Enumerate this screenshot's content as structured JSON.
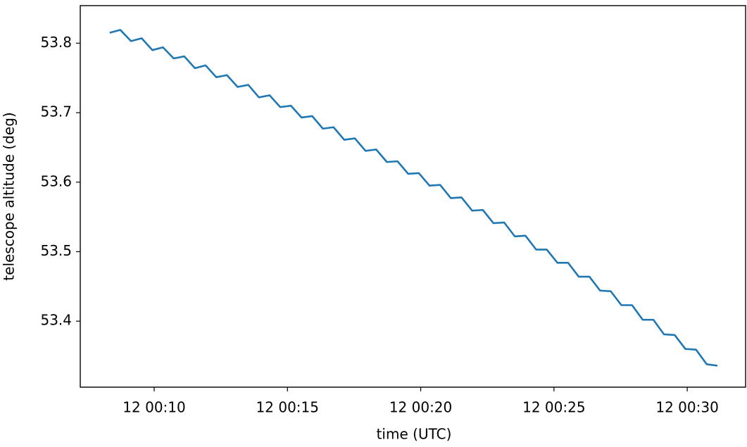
{
  "chart_data": {
    "type": "line",
    "xlabel": "time (UTC)",
    "ylabel": "telescope altitude (deg)",
    "color": "#1f77b4",
    "x": [
      8.33,
      8.73,
      9.13,
      9.53,
      9.93,
      10.33,
      10.73,
      11.13,
      11.53,
      11.93,
      12.33,
      12.73,
      13.13,
      13.53,
      13.93,
      14.33,
      14.73,
      15.13,
      15.53,
      15.93,
      16.33,
      16.73,
      17.13,
      17.53,
      17.93,
      18.33,
      18.73,
      19.13,
      19.53,
      19.93,
      20.33,
      20.73,
      21.13,
      21.53,
      21.93,
      22.33,
      22.73,
      23.13,
      23.53,
      23.93,
      24.33,
      24.73,
      25.13,
      25.53,
      25.93,
      26.33,
      26.73,
      27.13,
      27.53,
      27.93,
      28.33,
      28.73,
      29.13,
      29.53,
      29.93,
      30.33,
      30.73,
      31.13
    ],
    "values": [
      53.815,
      53.819,
      53.803,
      53.807,
      53.79,
      53.794,
      53.778,
      53.781,
      53.764,
      53.768,
      53.751,
      53.754,
      53.737,
      53.74,
      53.722,
      53.725,
      53.708,
      53.71,
      53.693,
      53.695,
      53.677,
      53.679,
      53.661,
      53.663,
      53.645,
      53.647,
      53.629,
      53.63,
      53.612,
      53.613,
      53.595,
      53.596,
      53.577,
      53.578,
      53.559,
      53.56,
      53.541,
      53.542,
      53.522,
      53.523,
      53.503,
      53.503,
      53.484,
      53.484,
      53.464,
      53.464,
      53.444,
      53.443,
      53.423,
      53.423,
      53.402,
      53.402,
      53.381,
      53.38,
      53.36,
      53.359,
      53.338,
      53.336
    ],
    "xlim": [
      7.226,
      32.19
    ],
    "xticks": [
      {
        "value": 10,
        "label": "12 00:10"
      },
      {
        "value": 15,
        "label": "12 00:15"
      },
      {
        "value": 20,
        "label": "12 00:20"
      },
      {
        "value": 25,
        "label": "12 00:25"
      },
      {
        "value": 30,
        "label": "12 00:30"
      }
    ],
    "ylim": [
      53.305,
      53.854
    ],
    "yticks": [
      53.4,
      53.5,
      53.6,
      53.7,
      53.8
    ],
    "grid": false
  }
}
